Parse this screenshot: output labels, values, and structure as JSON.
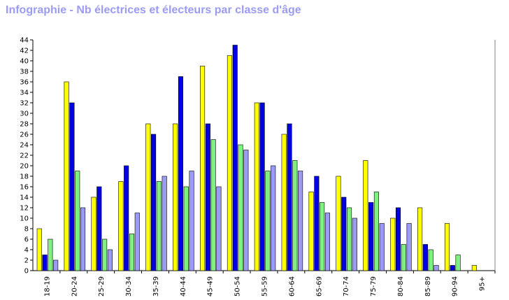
{
  "chart_data": {
    "type": "bar",
    "title": "Infographie - Nb électrices et électeurs par classe d'âge",
    "xlabel": "",
    "ylabel": "",
    "ylim": [
      0,
      44
    ],
    "yticks": [
      0,
      2,
      4,
      6,
      8,
      10,
      12,
      14,
      16,
      18,
      20,
      22,
      24,
      26,
      28,
      30,
      32,
      34,
      36,
      38,
      40,
      42,
      44
    ],
    "grid": false,
    "legend": "none",
    "categories": [
      "18-19",
      "20-24",
      "25-29",
      "30-34",
      "35-39",
      "40-44",
      "45-49",
      "50-54",
      "55-59",
      "60-64",
      "65-69",
      "70-74",
      "75-79",
      "80-84",
      "85-89",
      "90-94",
      "95+"
    ],
    "series": [
      {
        "color": "#ffff00",
        "values": [
          8,
          36,
          14,
          17,
          28,
          28,
          39,
          41,
          32,
          26,
          15,
          18,
          21,
          10,
          12,
          9,
          1
        ]
      },
      {
        "color": "#0000e0",
        "values": [
          3,
          32,
          16,
          20,
          26,
          37,
          28,
          43,
          32,
          28,
          18,
          14,
          13,
          12,
          5,
          1,
          0
        ]
      },
      {
        "color": "#80f080",
        "values": [
          6,
          19,
          6,
          7,
          17,
          16,
          25,
          24,
          19,
          21,
          13,
          12,
          15,
          5,
          4,
          3,
          0
        ]
      },
      {
        "color": "#9b9bf5",
        "values": [
          2,
          12,
          4,
          11,
          18,
          19,
          16,
          23,
          20,
          19,
          11,
          10,
          9,
          9,
          1,
          0,
          0
        ]
      }
    ]
  }
}
